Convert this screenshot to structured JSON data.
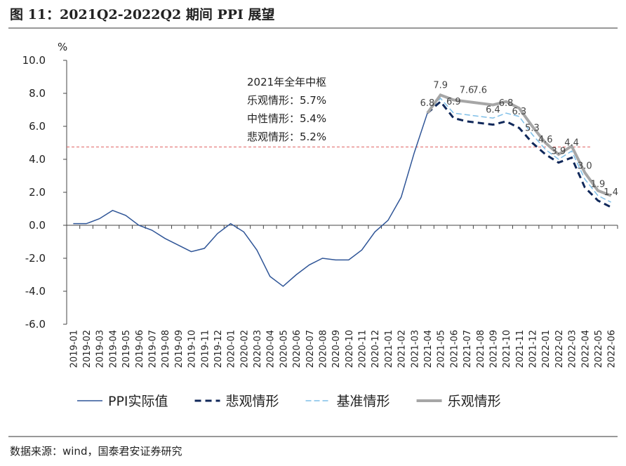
{
  "chart_data": {
    "type": "line",
    "title": "图 11：2021Q2-2022Q2 期间 PPI 展望",
    "unit": "%",
    "source": "数据来源：wind，国泰君安证券研究",
    "categories": [
      "2019-01",
      "2019-02",
      "2019-03",
      "2019-04",
      "2019-05",
      "2019-06",
      "2019-07",
      "2019-08",
      "2019-09",
      "2019-10",
      "2019-11",
      "2019-12",
      "2020-01",
      "2020-02",
      "2020-03",
      "2020-04",
      "2020-05",
      "2020-06",
      "2020-07",
      "2020-08",
      "2020-09",
      "2020-10",
      "2020-11",
      "2020-12",
      "2021-01",
      "2021-02",
      "2021-03",
      "2021-04",
      "2021-05",
      "2021-06",
      "2021-07",
      "2021-08",
      "2021-09",
      "2021-10",
      "2021-11",
      "2021-12",
      "2022-01",
      "2022-02",
      "2022-03",
      "2022-04",
      "2022-05",
      "2022-06"
    ],
    "series": [
      {
        "name": "PPI实际值",
        "color": "#2f5597",
        "style": "solid",
        "values": [
          0.1,
          0.1,
          0.4,
          0.9,
          0.6,
          0.0,
          -0.3,
          -0.8,
          -1.2,
          -1.6,
          -1.4,
          -0.5,
          0.1,
          -0.4,
          -1.5,
          -3.1,
          -3.7,
          -3.0,
          -2.4,
          -2.0,
          -2.1,
          -2.1,
          -1.5,
          -0.4,
          0.3,
          1.7,
          4.4,
          6.8,
          null,
          null,
          null,
          null,
          null,
          null,
          null,
          null,
          null,
          null,
          null,
          null,
          null,
          null
        ]
      },
      {
        "name": "悲观情形",
        "color": "#10285a",
        "style": "dash",
        "values": [
          null,
          null,
          null,
          null,
          null,
          null,
          null,
          null,
          null,
          null,
          null,
          null,
          null,
          null,
          null,
          null,
          null,
          null,
          null,
          null,
          null,
          null,
          null,
          null,
          null,
          null,
          null,
          6.8,
          7.5,
          6.5,
          6.3,
          6.2,
          6.1,
          6.3,
          5.9,
          5.0,
          4.3,
          3.8,
          4.1,
          2.3,
          1.5,
          1.1
        ]
      },
      {
        "name": "基准情形",
        "color": "#7fbfe8",
        "style": "lightdash",
        "values": [
          null,
          null,
          null,
          null,
          null,
          null,
          null,
          null,
          null,
          null,
          null,
          null,
          null,
          null,
          null,
          null,
          null,
          null,
          null,
          null,
          null,
          null,
          null,
          null,
          null,
          null,
          null,
          6.8,
          7.7,
          6.8,
          6.7,
          6.6,
          6.5,
          6.8,
          6.6,
          5.5,
          4.6,
          4.0,
          4.5,
          2.8,
          1.8,
          1.4
        ]
      },
      {
        "name": "乐观情形",
        "color": "#a6a6a6",
        "style": "thick",
        "values": [
          null,
          null,
          null,
          null,
          null,
          null,
          null,
          null,
          null,
          null,
          null,
          null,
          null,
          null,
          null,
          null,
          null,
          null,
          null,
          null,
          null,
          null,
          null,
          null,
          null,
          null,
          null,
          6.8,
          7.9,
          7.6,
          7.5,
          7.4,
          7.3,
          7.5,
          7.1,
          6.0,
          5.0,
          4.3,
          4.8,
          3.2,
          2.1,
          1.8
        ]
      }
    ],
    "annotations": [
      {
        "x": "2021-04",
        "y": 6.8,
        "label": "6.8"
      },
      {
        "x": "2021-05",
        "y": 7.9,
        "label": "7.9"
      },
      {
        "x": "2021-06",
        "y": 6.9,
        "label": "6.9"
      },
      {
        "x": "2021-07",
        "y": 7.6,
        "label": "7.6"
      },
      {
        "x": "2021-08",
        "y": 7.6,
        "label": "7.6"
      },
      {
        "x": "2021-09",
        "y": 6.4,
        "label": "6.4"
      },
      {
        "x": "2021-10",
        "y": 6.8,
        "label": "6.8"
      },
      {
        "x": "2021-11",
        "y": 6.3,
        "label": "6.3"
      },
      {
        "x": "2021-12",
        "y": 5.3,
        "label": "5.3"
      },
      {
        "x": "2022-01",
        "y": 4.6,
        "label": "4.6"
      },
      {
        "x": "2022-02",
        "y": 3.9,
        "label": "3.9"
      },
      {
        "x": "2022-03",
        "y": 4.4,
        "label": "4.4"
      },
      {
        "x": "2022-04",
        "y": 3.0,
        "label": "3.0"
      },
      {
        "x": "2022-05",
        "y": 1.9,
        "label": "1.9"
      },
      {
        "x": "2022-06",
        "y": 1.4,
        "label": "1.4"
      }
    ],
    "reference_line": {
      "value": 4.75,
      "color": "#e06060"
    },
    "textbox": [
      "2021年全年中枢",
      "乐观情形：5.7%",
      "中性情形：5.4%",
      "悲观情形：5.2%"
    ],
    "ylim": [
      -6,
      10
    ],
    "yticks": [
      {
        "value": -6,
        "label": "-6.0"
      },
      {
        "value": -4,
        "label": "-4.0"
      },
      {
        "value": -2,
        "label": "-2.0"
      },
      {
        "value": 0,
        "label": "0.0"
      },
      {
        "value": 2,
        "label": "2.0"
      },
      {
        "value": 4,
        "label": "4.0"
      },
      {
        "value": 6,
        "label": "6.0"
      },
      {
        "value": 8,
        "label": "8.0"
      },
      {
        "value": 10,
        "label": "10.0"
      }
    ],
    "legend": "bottom"
  }
}
